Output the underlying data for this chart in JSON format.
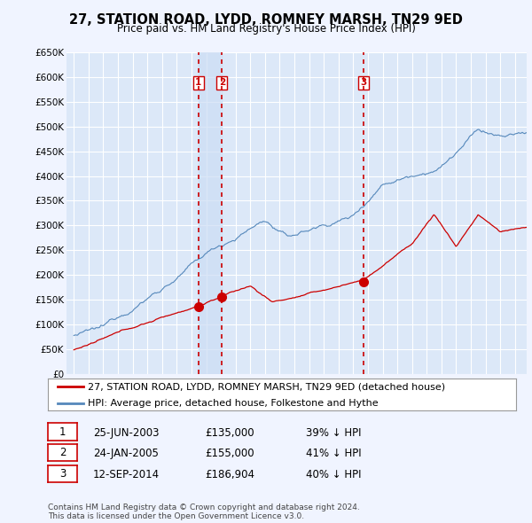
{
  "title": "27, STATION ROAD, LYDD, ROMNEY MARSH, TN29 9ED",
  "subtitle": "Price paid vs. HM Land Registry's House Price Index (HPI)",
  "ylim": [
    0,
    650000
  ],
  "yticks": [
    0,
    50000,
    100000,
    150000,
    200000,
    250000,
    300000,
    350000,
    400000,
    450000,
    500000,
    550000,
    600000,
    650000
  ],
  "ytick_labels": [
    "£0",
    "£50K",
    "£100K",
    "£150K",
    "£200K",
    "£250K",
    "£300K",
    "£350K",
    "£400K",
    "£450K",
    "£500K",
    "£550K",
    "£600K",
    "£650K"
  ],
  "xlim_left": 1994.5,
  "xlim_right": 2025.8,
  "background_color": "#f0f4ff",
  "plot_bg_color": "#dce8f8",
  "grid_color": "#ffffff",
  "shade_color": "#ccddf5",
  "sale_dates": [
    2003.48,
    2005.07,
    2014.7
  ],
  "sale_labels": [
    "1",
    "2",
    "3"
  ],
  "sale_prices": [
    135000,
    155000,
    186904
  ],
  "legend_property": "27, STATION ROAD, LYDD, ROMNEY MARSH, TN29 9ED (detached house)",
  "legend_hpi": "HPI: Average price, detached house, Folkestone and Hythe",
  "table_rows": [
    [
      "1",
      "25-JUN-2003",
      "£135,000",
      "39% ↓ HPI"
    ],
    [
      "2",
      "24-JAN-2005",
      "£155,000",
      "41% ↓ HPI"
    ],
    [
      "3",
      "12-SEP-2014",
      "£186,904",
      "40% ↓ HPI"
    ]
  ],
  "footer": "Contains HM Land Registry data © Crown copyright and database right 2024.\nThis data is licensed under the Open Government Licence v3.0.",
  "red_color": "#cc0000",
  "blue_color": "#5588bb",
  "title_fontsize": 10.5,
  "subtitle_fontsize": 8.5,
  "tick_fontsize": 7.5,
  "legend_fontsize": 8,
  "table_fontsize": 8.5,
  "footer_fontsize": 6.5
}
